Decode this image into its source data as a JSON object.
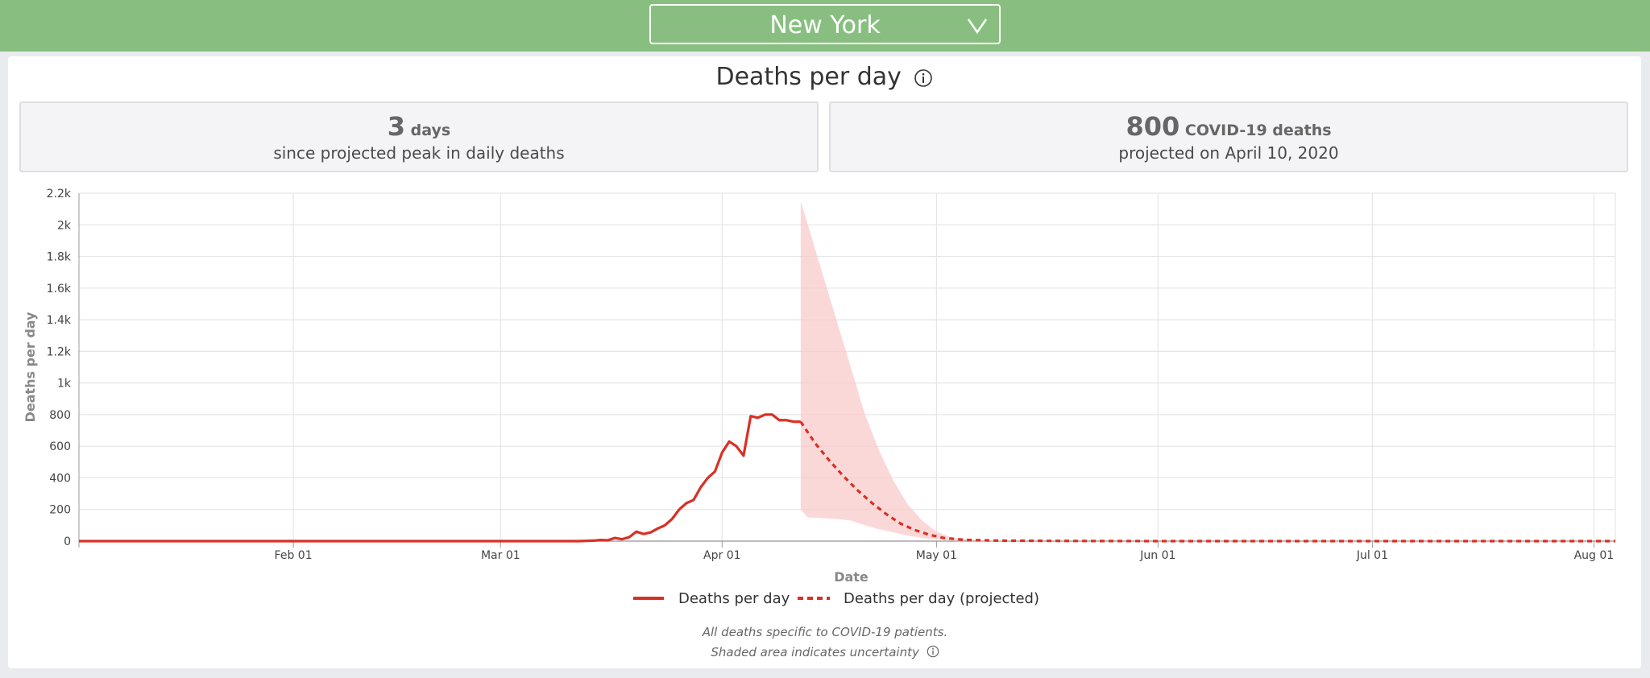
{
  "header": {
    "location": "New York",
    "chevron_icon": "chevron-down-icon"
  },
  "title": "Deaths per day",
  "stats": [
    {
      "big": "3",
      "unit": "days",
      "sub": "since projected peak in daily deaths"
    },
    {
      "big": "800",
      "unit": "COVID-19 deaths",
      "sub": "projected on April 10, 2020"
    }
  ],
  "footnotes": {
    "line1": "All deaths specific to COVID-19 patients.",
    "line2": "Shaded area indicates uncertainty"
  },
  "colors": {
    "header_bg": "#88bf80",
    "series": "#d93025",
    "uncertainty": "#f9c8c8"
  },
  "chart_data": {
    "type": "line",
    "xlabel": "Date",
    "ylabel": "Deaths per day",
    "x_ticks": [
      "2020-02-01",
      "2020-03-01",
      "2020-04-01",
      "2020-05-01",
      "2020-06-01",
      "2020-07-01",
      "2020-08-01"
    ],
    "x_tick_labels": [
      "Feb 01",
      "Mar 01",
      "Apr 01",
      "May 01",
      "Jun 01",
      "Jul 01",
      "Aug 01"
    ],
    "xlim": [
      "2020-01-02",
      "2020-08-04"
    ],
    "y_ticks": [
      0,
      200,
      400,
      600,
      800,
      1000,
      1200,
      1400,
      1600,
      1800,
      2000,
      2200
    ],
    "y_tick_labels": [
      "0",
      "200",
      "400",
      "600",
      "800",
      "1k",
      "1.2k",
      "1.4k",
      "1.6k",
      "1.8k",
      "2k",
      "2.2k"
    ],
    "ylim": [
      0,
      2200
    ],
    "grid": true,
    "legend": "bottom-center",
    "series": [
      {
        "name": "Deaths per day",
        "style": "solid",
        "x": [
          "2020-01-02",
          "2020-03-12",
          "2020-03-14",
          "2020-03-15",
          "2020-03-16",
          "2020-03-17",
          "2020-03-18",
          "2020-03-19",
          "2020-03-20",
          "2020-03-21",
          "2020-03-22",
          "2020-03-23",
          "2020-03-24",
          "2020-03-25",
          "2020-03-26",
          "2020-03-27",
          "2020-03-28",
          "2020-03-29",
          "2020-03-30",
          "2020-03-31",
          "2020-04-01",
          "2020-04-02",
          "2020-04-03",
          "2020-04-04",
          "2020-04-05",
          "2020-04-06",
          "2020-04-07",
          "2020-04-08",
          "2020-04-09",
          "2020-04-10",
          "2020-04-11",
          "2020-04-12"
        ],
        "y": [
          0,
          0,
          3,
          7,
          5,
          20,
          12,
          25,
          60,
          45,
          55,
          80,
          100,
          140,
          200,
          240,
          260,
          340,
          400,
          440,
          560,
          630,
          600,
          540,
          790,
          780,
          800,
          800,
          765,
          765,
          755,
          755
        ]
      },
      {
        "name": "Deaths per day (projected)",
        "style": "dashed",
        "x": [
          "2020-04-12",
          "2020-04-14",
          "2020-04-16",
          "2020-04-18",
          "2020-04-20",
          "2020-04-22",
          "2020-04-24",
          "2020-04-26",
          "2020-04-28",
          "2020-04-30",
          "2020-05-02",
          "2020-05-05",
          "2020-05-10",
          "2020-05-20",
          "2020-06-01",
          "2020-07-01",
          "2020-08-04"
        ],
        "y": [
          755,
          620,
          510,
          410,
          320,
          240,
          170,
          110,
          70,
          40,
          20,
          8,
          3,
          1,
          0,
          0,
          0
        ]
      }
    ],
    "uncertainty_band": {
      "x": [
        "2020-04-12",
        "2020-04-13",
        "2020-04-15",
        "2020-04-17",
        "2020-04-19",
        "2020-04-21",
        "2020-04-23",
        "2020-04-25",
        "2020-04-27",
        "2020-04-29",
        "2020-05-01",
        "2020-05-03",
        "2020-05-06",
        "2020-05-10",
        "2020-05-15"
      ],
      "upper": [
        2150,
        2000,
        1700,
        1400,
        1100,
        800,
        570,
        380,
        230,
        130,
        60,
        25,
        8,
        2,
        0
      ],
      "lower": [
        200,
        150,
        145,
        140,
        130,
        100,
        75,
        55,
        35,
        20,
        10,
        5,
        2,
        0,
        0
      ]
    }
  }
}
